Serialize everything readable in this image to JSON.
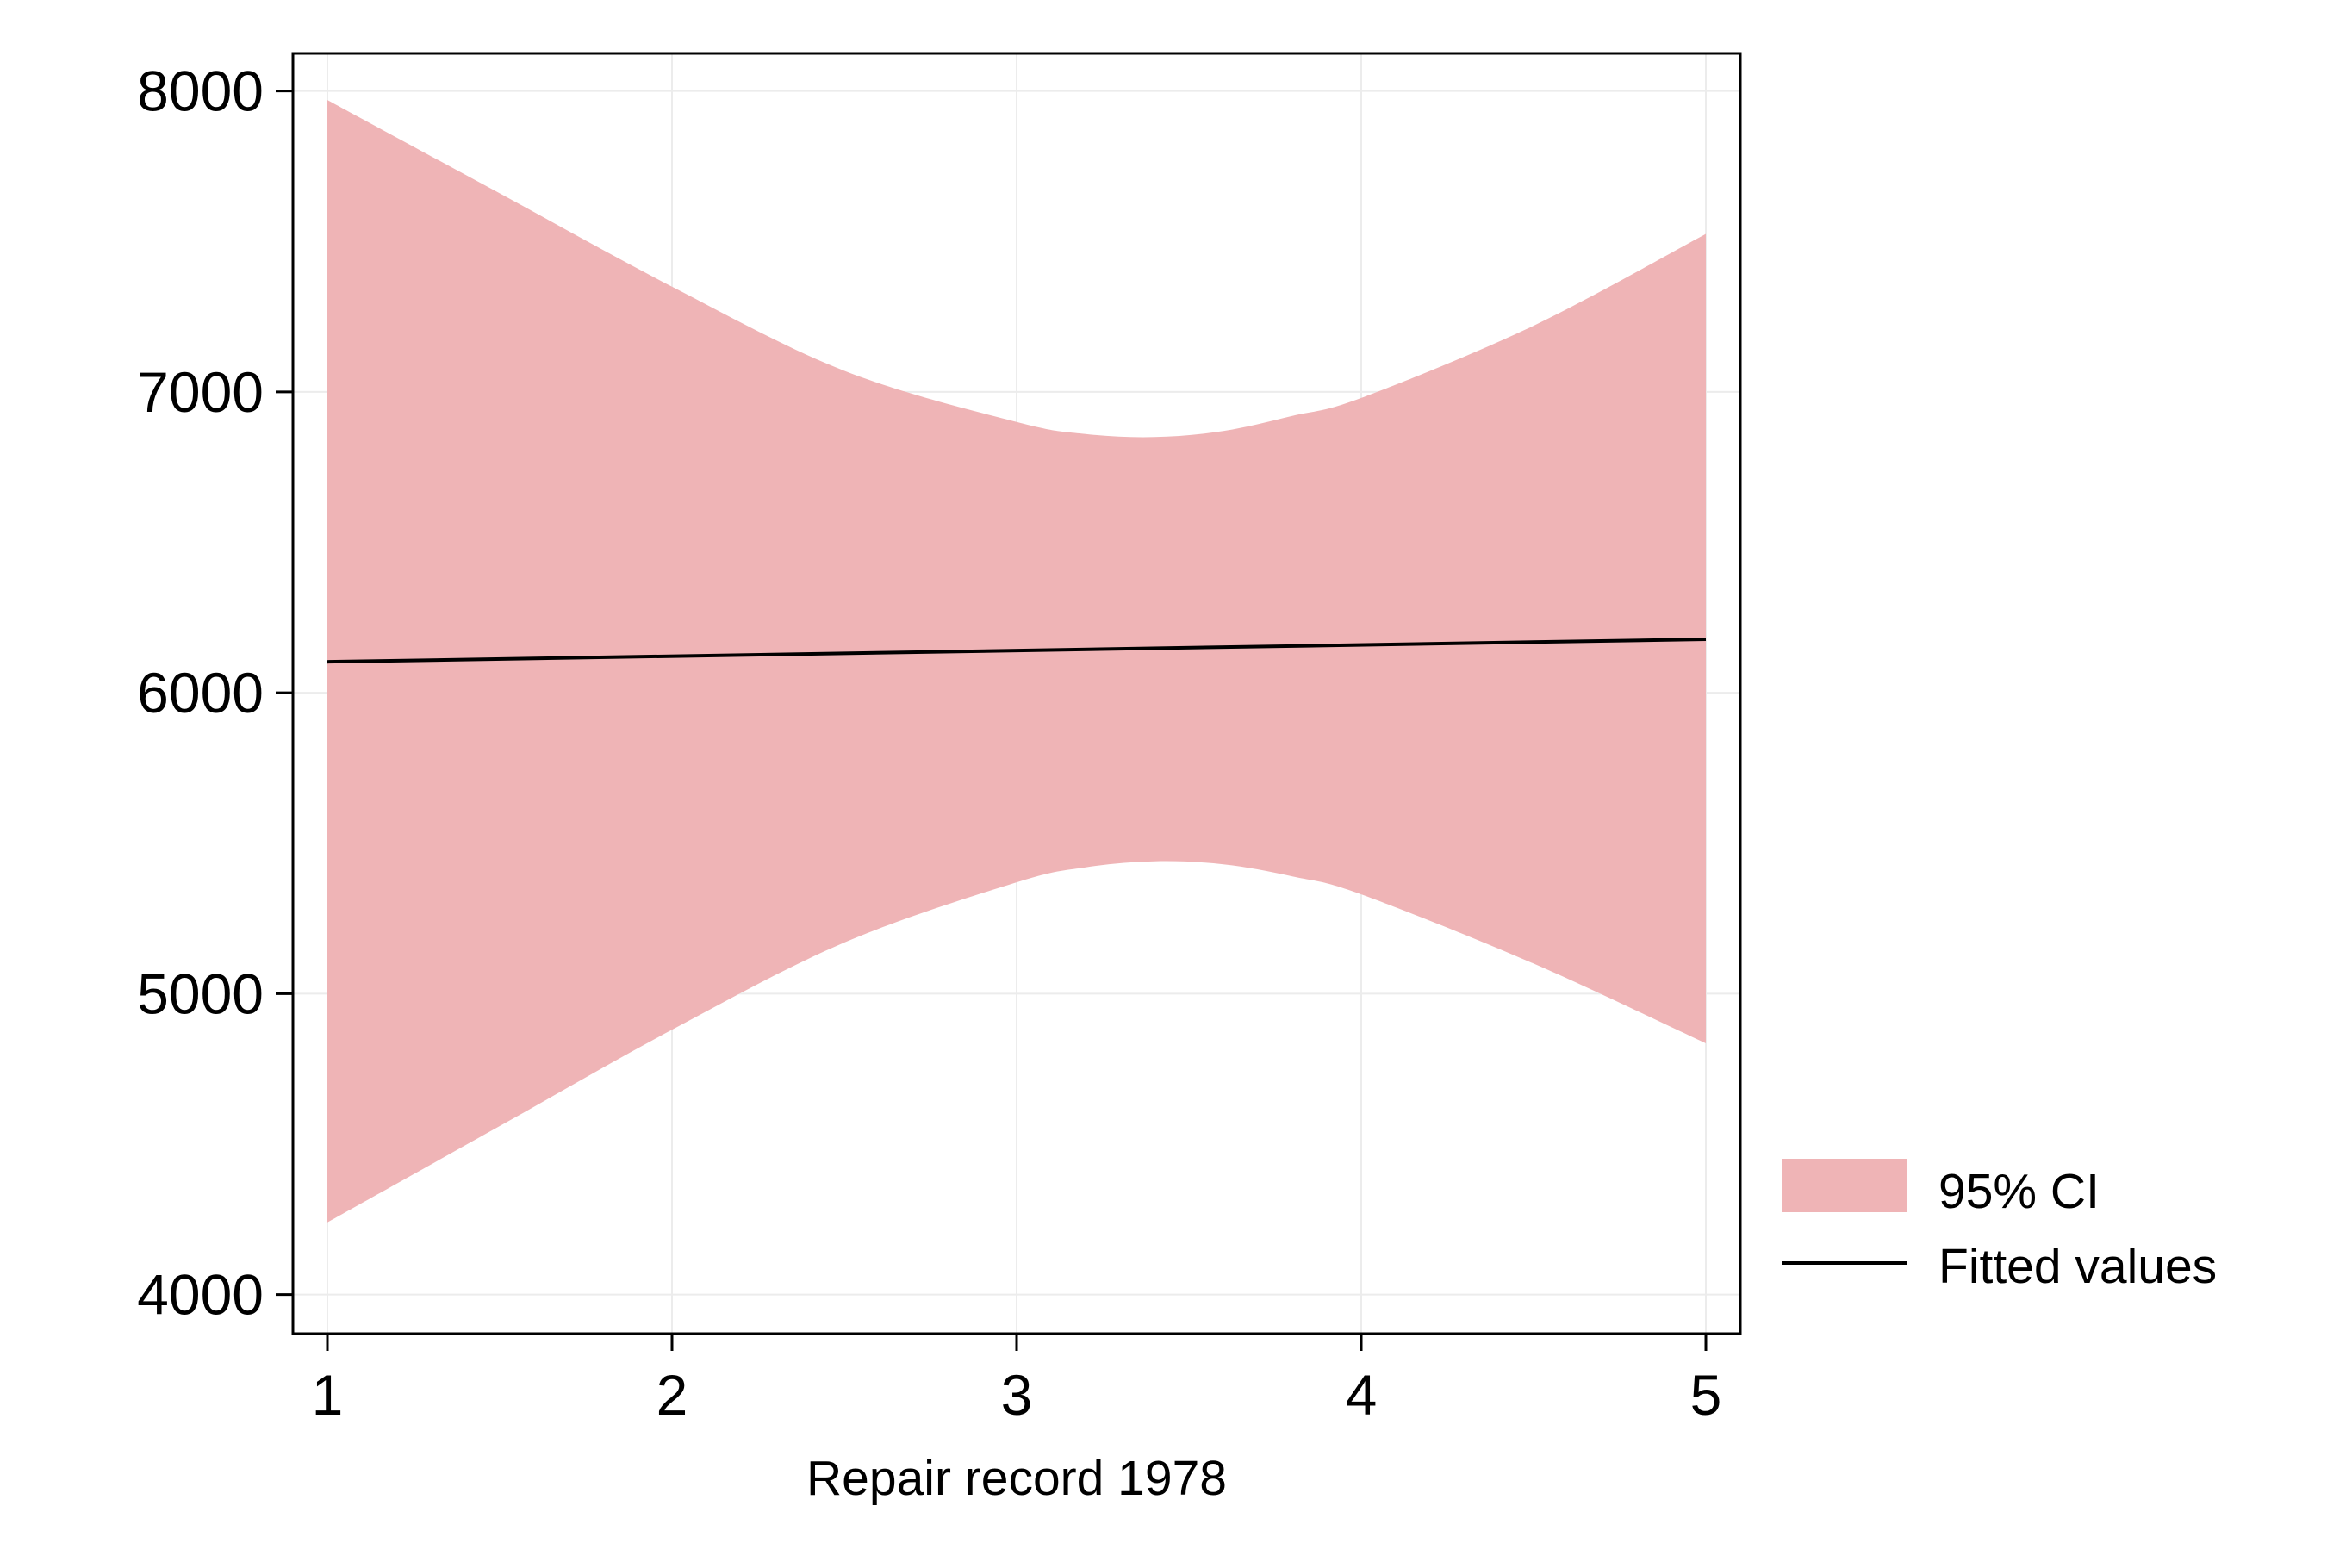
{
  "chart_data": {
    "type": "line",
    "title": "",
    "xlabel": "Repair record 1978",
    "ylabel": "",
    "xlim": [
      0.9,
      5.1
    ],
    "ylim": [
      3870,
      8125
    ],
    "xticks": [
      1,
      2,
      3,
      4,
      5
    ],
    "yticks": [
      4000,
      5000,
      6000,
      7000,
      8000
    ],
    "grid": true,
    "legend_position": "right",
    "colors": {
      "ci_fill": "#efb4b6",
      "fit_line": "#000000",
      "grid": "#ececec",
      "frame": "#000000"
    },
    "series": [
      {
        "name": "95% CI",
        "kind": "area",
        "x": [
          1,
          1.5,
          2,
          2.5,
          3,
          3.2,
          3.4,
          3.6,
          3.8,
          4,
          4.5,
          5
        ],
        "upper": [
          7970,
          7660,
          7350,
          7070,
          6900,
          6860,
          6850,
          6870,
          6920,
          6980,
          7220,
          7525
        ],
        "lower": [
          4240,
          4560,
          4880,
          5170,
          5370,
          5420,
          5440,
          5430,
          5390,
          5330,
          5100,
          4835
        ]
      },
      {
        "name": "Fitted values",
        "kind": "line",
        "x": [
          1,
          5
        ],
        "y": [
          6103,
          6178
        ]
      }
    ]
  }
}
